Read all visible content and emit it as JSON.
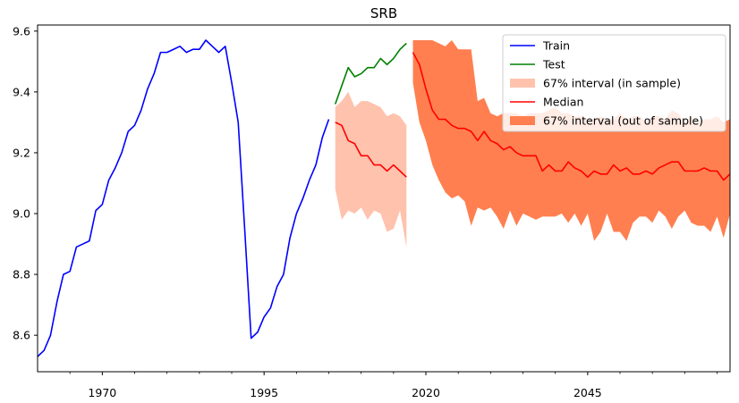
{
  "chart_data": {
    "type": "line",
    "title": "SRB",
    "xlabel": "",
    "ylabel": "",
    "xlim": [
      1960,
      2067
    ],
    "ylim": [
      8.48,
      9.62
    ],
    "x_ticks": [
      1970,
      1995,
      2020,
      2045
    ],
    "y_ticks": [
      8.6,
      8.8,
      9.0,
      9.2,
      9.4,
      9.6
    ],
    "legend_position": "top-right",
    "colors": {
      "train": "#0000ff",
      "test": "#008000",
      "median": "#ff0000",
      "band_in": "#ffc2ad",
      "band_out": "#ff7f50"
    },
    "legend": [
      {
        "label": "Train",
        "kind": "line",
        "color": "#0000ff"
      },
      {
        "label": "Test",
        "kind": "line",
        "color": "#008000"
      },
      {
        "label": "67% interval (in sample)",
        "kind": "patch",
        "color": "#ffc2ad"
      },
      {
        "label": "Median",
        "kind": "line",
        "color": "#ff0000"
      },
      {
        "label": "67% interval (out of sample)",
        "kind": "patch",
        "color": "#ff7f50"
      }
    ],
    "series": [
      {
        "name": "Train",
        "x": [
          1960,
          1961,
          1962,
          1963,
          1964,
          1965,
          1966,
          1967,
          1968,
          1969,
          1970,
          1971,
          1972,
          1973,
          1974,
          1975,
          1976,
          1977,
          1978,
          1979,
          1980,
          1981,
          1982,
          1983,
          1984,
          1985,
          1986,
          1987,
          1988,
          1989,
          1990,
          1991,
          1992,
          1993,
          1994,
          1995,
          1996,
          1997,
          1998,
          1999,
          2000,
          2001,
          2002,
          2003,
          2004,
          2005
        ],
        "y": [
          8.53,
          8.55,
          8.6,
          8.71,
          8.8,
          8.81,
          8.89,
          8.9,
          8.91,
          9.01,
          9.03,
          9.11,
          9.15,
          9.2,
          9.27,
          9.29,
          9.34,
          9.41,
          9.46,
          9.53,
          9.53,
          9.54,
          9.55,
          9.53,
          9.54,
          9.54,
          9.57,
          9.55,
          9.53,
          9.55,
          9.43,
          9.3,
          8.95,
          8.59,
          8.61,
          8.66,
          8.69,
          8.76,
          8.8,
          8.92,
          9.0,
          9.05,
          9.11,
          9.16,
          9.25,
          9.31
        ]
      },
      {
        "name": "Test",
        "x": [
          2006,
          2007,
          2008,
          2009,
          2010,
          2011,
          2012,
          2013,
          2014,
          2015,
          2016,
          2017
        ],
        "y": [
          9.36,
          9.42,
          9.48,
          9.45,
          9.46,
          9.48,
          9.48,
          9.51,
          9.49,
          9.51,
          9.54,
          9.56
        ]
      },
      {
        "name": "Median",
        "segments": [
          {
            "x": [
              2006,
              2007,
              2008,
              2009,
              2010,
              2011,
              2012,
              2013,
              2014,
              2015,
              2016,
              2017
            ],
            "y": [
              9.3,
              9.29,
              9.24,
              9.23,
              9.19,
              9.19,
              9.16,
              9.16,
              9.14,
              9.16,
              9.14,
              9.12
            ]
          },
          {
            "x": [
              2018,
              2019,
              2020,
              2021,
              2022,
              2023,
              2024,
              2025,
              2026,
              2027,
              2028,
              2029,
              2030,
              2031,
              2032,
              2033,
              2034,
              2035,
              2036,
              2037,
              2038,
              2039,
              2040,
              2041,
              2042,
              2043,
              2044,
              2045,
              2046,
              2047,
              2048,
              2049,
              2050,
              2051,
              2052,
              2053,
              2054,
              2055,
              2056,
              2057,
              2058,
              2059,
              2060,
              2061,
              2062,
              2063,
              2064,
              2065,
              2066,
              2067
            ],
            "y": [
              9.53,
              9.49,
              9.41,
              9.34,
              9.31,
              9.31,
              9.29,
              9.28,
              9.28,
              9.27,
              9.24,
              9.27,
              9.24,
              9.23,
              9.21,
              9.22,
              9.2,
              9.19,
              9.19,
              9.19,
              9.14,
              9.16,
              9.14,
              9.14,
              9.17,
              9.15,
              9.14,
              9.12,
              9.14,
              9.13,
              9.13,
              9.16,
              9.14,
              9.15,
              9.13,
              9.13,
              9.14,
              9.13,
              9.15,
              9.16,
              9.17,
              9.17,
              9.14,
              9.14,
              9.14,
              9.15,
              9.14,
              9.14,
              9.11,
              9.13
            ]
          }
        ]
      }
    ],
    "bands": [
      {
        "name": "67% interval (in sample)",
        "x": [
          2006,
          2007,
          2008,
          2009,
          2010,
          2011,
          2012,
          2013,
          2014,
          2015,
          2016,
          2017
        ],
        "lower": [
          9.08,
          8.98,
          9.01,
          9.0,
          9.02,
          8.98,
          9.01,
          9.0,
          8.94,
          8.95,
          9.01,
          8.89
        ],
        "upper": [
          9.35,
          9.37,
          9.4,
          9.35,
          9.37,
          9.37,
          9.36,
          9.35,
          9.32,
          9.33,
          9.32,
          9.29
        ]
      },
      {
        "name": "67% interval (out of sample)",
        "x": [
          2018,
          2019,
          2020,
          2021,
          2022,
          2023,
          2024,
          2025,
          2026,
          2027,
          2028,
          2029,
          2030,
          2031,
          2032,
          2033,
          2034,
          2035,
          2036,
          2037,
          2038,
          2039,
          2040,
          2041,
          2042,
          2043,
          2044,
          2045,
          2046,
          2047,
          2048,
          2049,
          2050,
          2051,
          2052,
          2053,
          2054,
          2055,
          2056,
          2057,
          2058,
          2059,
          2060,
          2061,
          2062,
          2063,
          2064,
          2065,
          2066,
          2067
        ],
        "lower": [
          9.43,
          9.3,
          9.24,
          9.16,
          9.11,
          9.07,
          9.05,
          9.06,
          9.04,
          8.96,
          9.02,
          9.01,
          9.02,
          8.99,
          8.95,
          9.01,
          8.96,
          9.0,
          8.99,
          8.98,
          8.99,
          8.99,
          8.99,
          9.0,
          8.97,
          9.0,
          8.96,
          9.0,
          8.91,
          8.94,
          9.0,
          8.94,
          8.94,
          8.91,
          8.97,
          8.99,
          8.99,
          8.97,
          9.01,
          8.99,
          8.95,
          8.99,
          9.01,
          8.97,
          8.96,
          8.96,
          8.94,
          8.99,
          8.92,
          9.0
        ],
        "upper": [
          9.57,
          9.57,
          9.57,
          9.57,
          9.56,
          9.55,
          9.57,
          9.54,
          9.54,
          9.54,
          9.37,
          9.38,
          9.33,
          9.32,
          9.33,
          9.33,
          9.33,
          9.32,
          9.33,
          9.33,
          9.33,
          9.34,
          9.35,
          9.33,
          9.33,
          9.32,
          9.32,
          9.31,
          9.31,
          9.32,
          9.31,
          9.31,
          9.33,
          9.31,
          9.32,
          9.32,
          9.3,
          9.32,
          9.32,
          9.31,
          9.34,
          9.33,
          9.3,
          9.32,
          9.3,
          9.31,
          9.31,
          9.32,
          9.3,
          9.31
        ]
      }
    ]
  }
}
